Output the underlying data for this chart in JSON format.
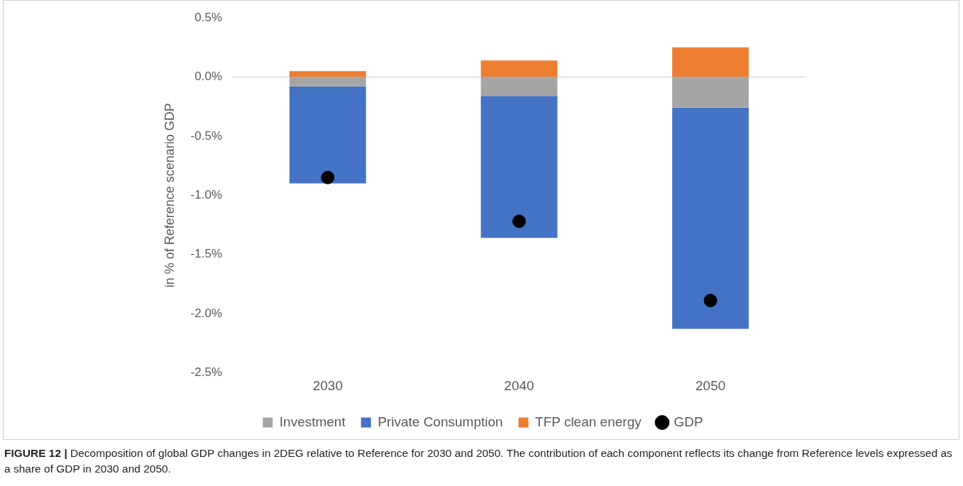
{
  "chart_data": {
    "type": "bar",
    "stacked": true,
    "ylabel": "in % of Reference scenario GDP",
    "categories": [
      "2030",
      "2040",
      "2050"
    ],
    "series": [
      {
        "name": "Investment",
        "color": "#a5a5a5",
        "values": [
          -0.08,
          -0.16,
          -0.26
        ]
      },
      {
        "name": "Private Consumption",
        "color": "#4472c4",
        "values": [
          -0.82,
          -1.2,
          -1.87
        ]
      },
      {
        "name": "TFP clean energy",
        "color": "#ed7d31",
        "values": [
          0.05,
          0.14,
          0.25
        ]
      },
      {
        "name": "GDP",
        "type": "scatter",
        "color": "#000000",
        "values": [
          -0.85,
          -1.22,
          -1.89
        ]
      }
    ],
    "ylim": [
      -2.5,
      0.5
    ],
    "yticks": [
      {
        "value": -2.5,
        "label": "-2.5%"
      },
      {
        "value": -2,
        "label": "-2.0%"
      },
      {
        "value": -1.5,
        "label": "-1.5%"
      },
      {
        "value": -1,
        "label": "-1.0%"
      },
      {
        "value": -0.5,
        "label": "-0.5%"
      },
      {
        "value": 0,
        "label": "0.0%"
      },
      {
        "value": 0.5,
        "label": "0.5%"
      }
    ],
    "ref_lines": [
      {
        "axis": "y",
        "value": 0,
        "color": "#d9d9d9"
      }
    ],
    "grid": false,
    "legend": "bottom",
    "marker": "circle",
    "annotations": [
      "FIGURE 12 | Decomposition of global GDP changes in 2DEG relative to Reference for 2030 and 2050. The contribution of each component reflects its change from Reference levels expressed as a share of GDP in 2030 and 2050."
    ]
  }
}
